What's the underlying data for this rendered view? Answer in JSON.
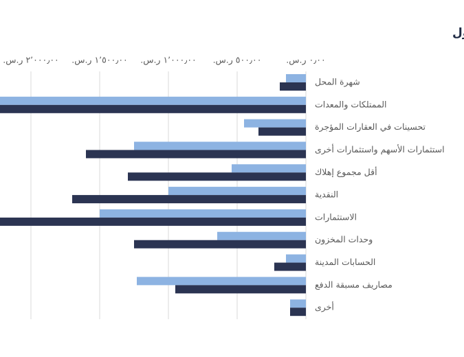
{
  "chart_data": {
    "type": "bar",
    "orientation": "horizontal",
    "reversed_x": true,
    "title": "الأصول",
    "categories": [
      "شهرة المحل",
      "الممتلكات والمعدات",
      "تحسينات في العقارات المؤجرة",
      "استثمارات الأسهم واستثمارات أخرى",
      "أقل مجموع إهلاك",
      "النقدية",
      "الاستثمارات",
      "وحدات المخزون",
      "الحسابات المدينة",
      "مصاريف مسبقة الدفع",
      "أخرى"
    ],
    "series": [
      {
        "color": "#8db3e2",
        "values": [
          145,
          2250,
          450,
          1250,
          540,
          1000,
          1500,
          645,
          145,
          1230,
          115
        ]
      },
      {
        "color": "#2b3452",
        "values": [
          190,
          2250,
          345,
          1600,
          1295,
          1700,
          2250,
          1250,
          230,
          950,
          115
        ]
      }
    ],
    "xlim": [
      0,
      2500
    ],
    "xticks": [
      {
        "value": 0,
        "label": "٠٫٠٠ ر.س."
      },
      {
        "value": 500,
        "label": "٥٠٠٫٠٠ ر.س."
      },
      {
        "value": 1000,
        "label": "١٬٠٠٠٫٠٠ ر.س."
      },
      {
        "value": 1500,
        "label": "١٬٥٠٠٫٠٠ ر.س."
      },
      {
        "value": 2000,
        "label": "٢٬٠٠٠٫٠٠ ر.س."
      }
    ],
    "grid": true
  }
}
